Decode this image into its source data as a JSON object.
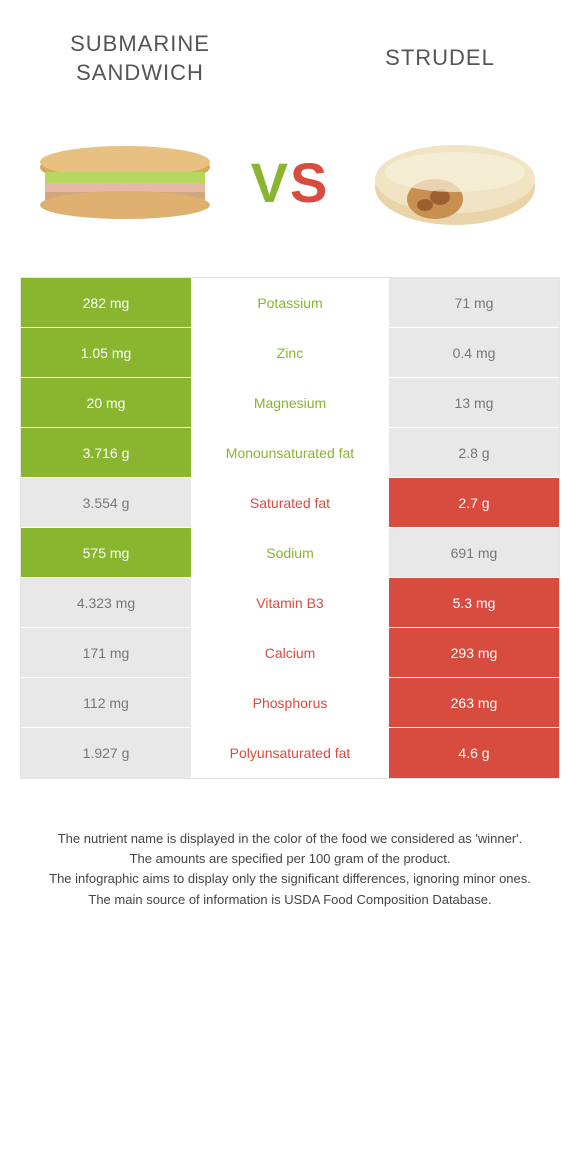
{
  "header": {
    "left_title": "SUBMARINE SANDWICH",
    "right_title": "STRUDEL"
  },
  "vs": {
    "v": "V",
    "s": "S"
  },
  "colors": {
    "left": "#8ab52f",
    "right": "#d84c3f",
    "dim_bg": "#e8e8e8",
    "dim_text": "#777777"
  },
  "rows": [
    {
      "left": "282 mg",
      "label": "Potassium",
      "right": "71 mg",
      "winner": "left"
    },
    {
      "left": "1.05 mg",
      "label": "Zinc",
      "right": "0.4 mg",
      "winner": "left"
    },
    {
      "left": "20 mg",
      "label": "Magnesium",
      "right": "13 mg",
      "winner": "left"
    },
    {
      "left": "3.716 g",
      "label": "Monounsaturated fat",
      "right": "2.8 g",
      "winner": "left"
    },
    {
      "left": "3.554 g",
      "label": "Saturated fat",
      "right": "2.7 g",
      "winner": "right"
    },
    {
      "left": "575 mg",
      "label": "Sodium",
      "right": "691 mg",
      "winner": "left"
    },
    {
      "left": "4.323 mg",
      "label": "Vitamin B3",
      "right": "5.3 mg",
      "winner": "right"
    },
    {
      "left": "171 mg",
      "label": "Calcium",
      "right": "293 mg",
      "winner": "right"
    },
    {
      "left": "112 mg",
      "label": "Phosphorus",
      "right": "263 mg",
      "winner": "right"
    },
    {
      "left": "1.927 g",
      "label": "Polyunsaturated fat",
      "right": "4.6 g",
      "winner": "right"
    }
  ],
  "notes": {
    "line1": "The nutrient name is displayed in the color of the food we considered as 'winner'.",
    "line2": "The amounts are specified per 100 gram of the product.",
    "line3": "The infographic aims to display only the significant differences, ignoring minor ones.",
    "line4": "The main source of information is USDA Food Composition Database."
  }
}
